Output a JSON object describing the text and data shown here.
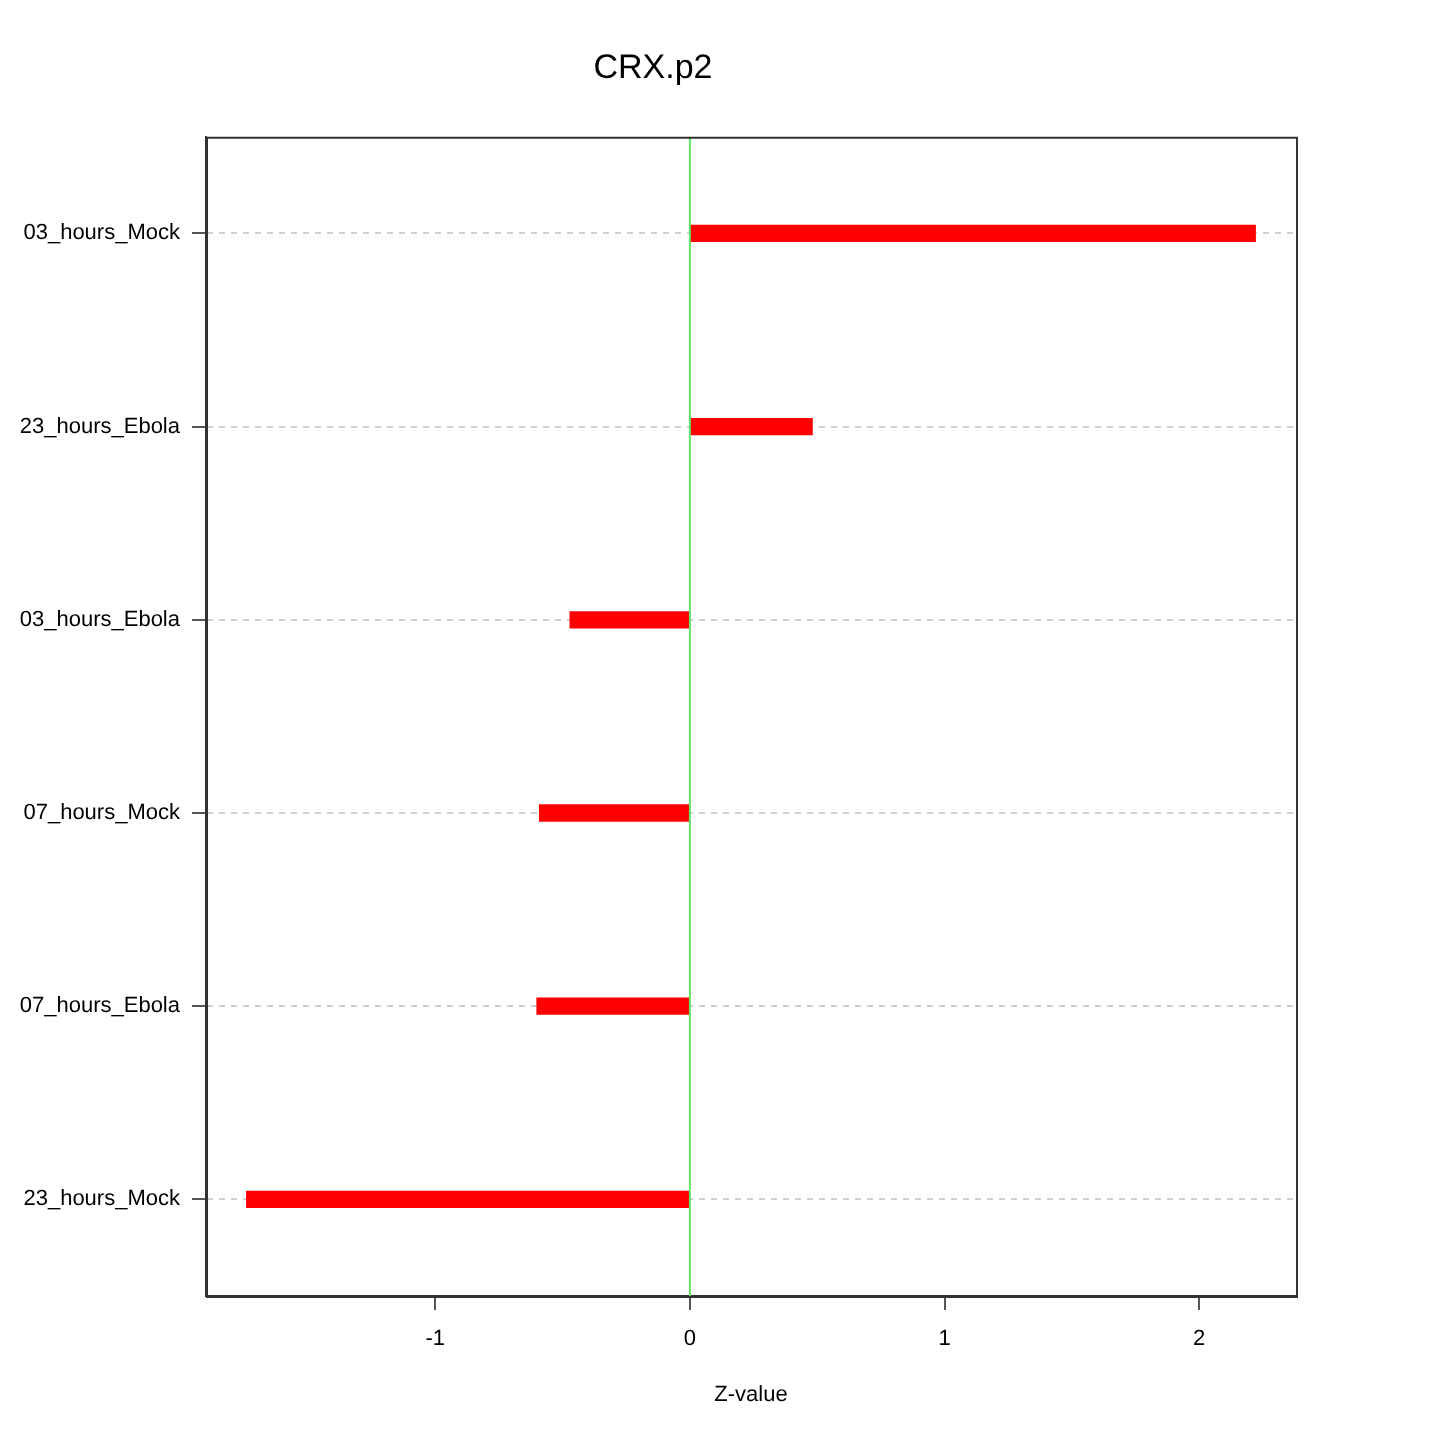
{
  "chart_data": {
    "type": "bar",
    "orientation": "horizontal",
    "title": "CRX.p2",
    "xlabel": "Z-value",
    "categories": [
      "03_hours_Mock",
      "23_hours_Ebola",
      "03_hours_Ebola",
      "07_hours_Mock",
      "07_hours_Ebola",
      "23_hours_Mock"
    ],
    "values": [
      2.22,
      0.48,
      -0.47,
      -0.59,
      -0.6,
      -1.74
    ],
    "color": "#ff0000",
    "xlim": [
      -1.9,
      2.38
    ],
    "xticks": [
      -1,
      0,
      1,
      2
    ],
    "grid": "y",
    "ref_lines": [
      {
        "axis": "x",
        "value": 0,
        "color": "#66e066"
      }
    ]
  }
}
